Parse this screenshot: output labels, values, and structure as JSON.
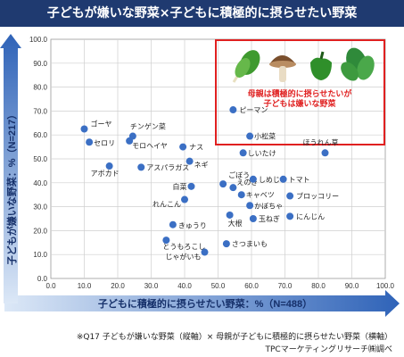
{
  "header": {
    "title": "子どもが嫌いな野菜×子どもに積極的に摂らせたい野菜"
  },
  "chart_data": {
    "type": "scatter",
    "title": "子どもが嫌いな野菜×子どもに積極的に摂らせたい野菜",
    "xlabel": "子どもに積極的に摂らせたい野菜：%（N=488）",
    "ylabel": "子どもが嫌いな野菜：%（N=217）",
    "xlim": [
      0,
      100
    ],
    "ylim": [
      0,
      100
    ],
    "xticks": [
      "0.0",
      "10.0",
      "20.0",
      "30.0",
      "40.0",
      "50.0",
      "60.0",
      "70.0",
      "80.0",
      "90.0",
      "100.0"
    ],
    "yticks": [
      "0.0",
      "10.0",
      "20.0",
      "30.0",
      "40.0",
      "50.0",
      "60.0",
      "70.0",
      "80.0",
      "90.0",
      "100.0"
    ],
    "grid": true,
    "point_color": "#3b6fc4",
    "highlight_color": "#e02020",
    "points": [
      {
        "label": "ゴーヤ",
        "x": 10.0,
        "y": 62.5
      },
      {
        "label": "チンゲン菜",
        "x": 24.5,
        "y": 59.5
      },
      {
        "label": "セロリ",
        "x": 11.5,
        "y": 57.0
      },
      {
        "label": "モロヘイヤ",
        "x": 23.5,
        "y": 57.5
      },
      {
        "label": "ナス",
        "x": 39.5,
        "y": 55.0
      },
      {
        "label": "アボカド",
        "x": 17.5,
        "y": 47.0
      },
      {
        "label": "アスパラガス",
        "x": 27.0,
        "y": 46.5
      },
      {
        "label": "ネギ",
        "x": 41.5,
        "y": 49.0
      },
      {
        "label": "ピーマン",
        "x": 54.5,
        "y": 70.5
      },
      {
        "label": "小松菜",
        "x": 59.5,
        "y": 59.5
      },
      {
        "label": "しいたけ",
        "x": 57.5,
        "y": 52.5
      },
      {
        "label": "ほうれん草",
        "x": 82.0,
        "y": 52.5
      },
      {
        "label": "白菜",
        "x": 42.0,
        "y": 38.5
      },
      {
        "label": "ごぼう",
        "x": 51.5,
        "y": 39.5
      },
      {
        "label": "えのき",
        "x": 54.5,
        "y": 38.0
      },
      {
        "label": "しめじ",
        "x": 60.5,
        "y": 41.5
      },
      {
        "label": "トマト",
        "x": 69.5,
        "y": 41.5
      },
      {
        "label": "れんこん",
        "x": 40.0,
        "y": 33.0
      },
      {
        "label": "キャベツ",
        "x": 57.0,
        "y": 35.0
      },
      {
        "label": "かぼちゃ",
        "x": 59.5,
        "y": 30.5
      },
      {
        "label": "ブロッコリー",
        "x": 71.5,
        "y": 34.5
      },
      {
        "label": "きゅうり",
        "x": 36.5,
        "y": 22.5
      },
      {
        "label": "大根",
        "x": 53.5,
        "y": 26.5
      },
      {
        "label": "玉ねぎ",
        "x": 60.5,
        "y": 25.0
      },
      {
        "label": "にんじん",
        "x": 71.5,
        "y": 26.0
      },
      {
        "label": "とうもろこし",
        "x": 34.5,
        "y": 16.0
      },
      {
        "label": "さつまいも",
        "x": 52.5,
        "y": 14.5
      },
      {
        "label": "じゃがいも",
        "x": 46.0,
        "y": 11.0
      }
    ],
    "annotation": "母親は積極的に摂らせたいが\n子どもは嫌いな野菜",
    "illustrations": [
      "chard-icon",
      "shiitake-icon",
      "green-pepper-icon",
      "spinach-icon"
    ]
  },
  "note": {
    "line1": "※Q17 子どもが嫌いな野菜（縦軸）× 母親が子どもに積極的に摂らせたい野菜（横軸）",
    "line2": "TPCマーケティングリサーチ㈱調べ"
  }
}
